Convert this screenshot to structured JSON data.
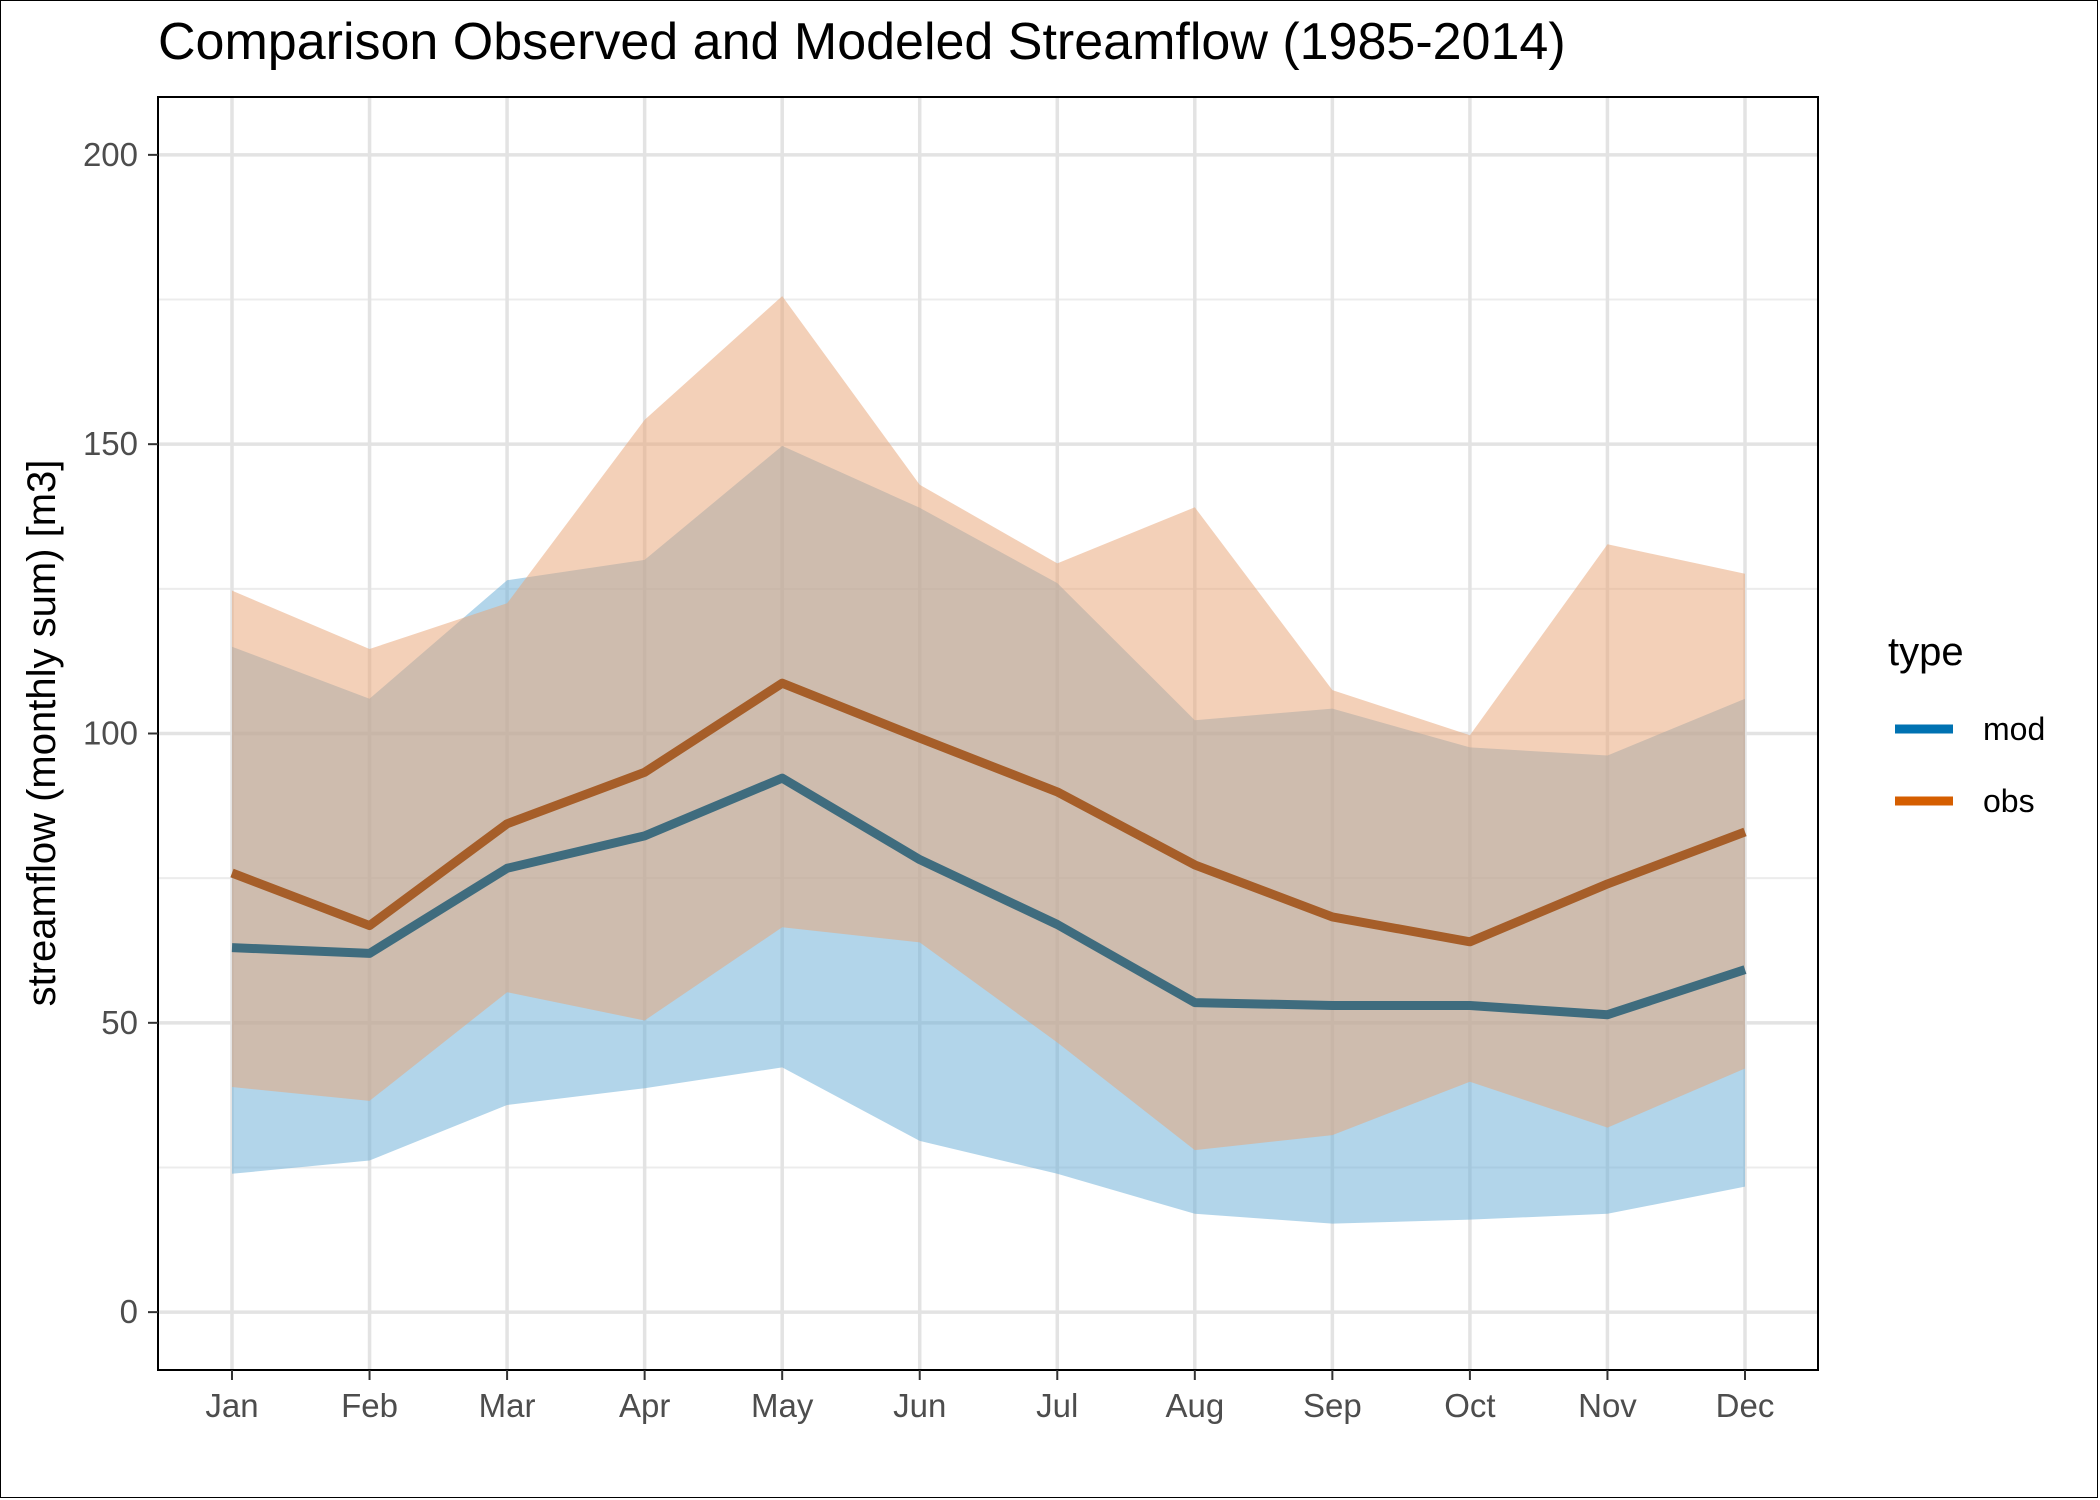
{
  "chart_data": {
    "type": "line",
    "title": "Comparison Observed and Modeled Streamflow (1985-2014)",
    "xlabel": "",
    "ylabel": "streamflow (monthly sum) [m3]",
    "categories": [
      "Jan",
      "Feb",
      "Mar",
      "Apr",
      "May",
      "Jun",
      "Jul",
      "Aug",
      "Sep",
      "Oct",
      "Nov",
      "Dec"
    ],
    "ylim": [
      -10,
      210
    ],
    "yticks": [
      0,
      50,
      100,
      150,
      200
    ],
    "grid": true,
    "legend": {
      "title": "type",
      "position": "right",
      "entries": [
        {
          "label": "mod",
          "color": "#0072B2"
        },
        {
          "label": "obs",
          "color": "#D55E00"
        }
      ]
    },
    "series": [
      {
        "name": "mod",
        "color": "#3F6C7E",
        "band_color": "#6BAED6",
        "values": [
          63,
          62,
          76.7,
          82.3,
          92.3,
          78.2,
          67,
          53.5,
          53,
          53,
          51.4,
          59.2
        ],
        "lower": [
          23.9,
          26.2,
          35.8,
          38.7,
          42.3,
          29.6,
          23.9,
          17,
          15.3,
          16,
          17,
          21.7
        ],
        "upper": [
          115,
          106,
          126.5,
          130,
          149.7,
          139,
          126,
          102.3,
          104.3,
          97.6,
          96.2,
          106
        ]
      },
      {
        "name": "obs",
        "color": "#A65E29",
        "band_color": "#E8A576",
        "values": [
          75.9,
          66.8,
          84.4,
          93.3,
          108.7,
          99.2,
          89.9,
          77.3,
          68.3,
          64,
          74,
          83
        ],
        "lower": [
          38.9,
          36.5,
          55.3,
          50.4,
          66.5,
          63.9,
          46.6,
          28,
          30.6,
          39.8,
          31.9,
          42.1
        ],
        "upper": [
          124.7,
          114.6,
          122.5,
          154.2,
          175.6,
          143,
          129.4,
          139.1,
          107.5,
          99.7,
          132.7,
          127.6
        ]
      }
    ]
  }
}
